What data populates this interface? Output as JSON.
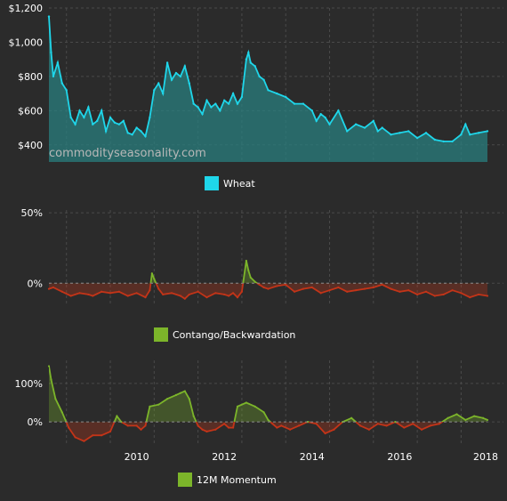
{
  "watermark": "commodityseasonality.com",
  "colors": {
    "background": "#2b2b2b",
    "grid": "#4a4a4a",
    "wheat": "#1fd6ea",
    "wheat_fill": "#2a7f7f",
    "green": "#7cb52a",
    "red": "#c33418",
    "text": "#ffffff"
  },
  "chart_data": [
    {
      "type": "area",
      "legend": "Wheat",
      "ylim": [
        300,
        1200
      ],
      "xlim": [
        2008.0,
        2018.0
      ],
      "ytick_labels": [
        "$400",
        "$600",
        "$800",
        "$1,000",
        "$1,200"
      ],
      "ytick_values": [
        400,
        600,
        800,
        1000,
        1200
      ],
      "series": [
        {
          "name": "Wheat",
          "x": [
            2008.0,
            2008.05,
            2008.1,
            2008.2,
            2008.3,
            2008.4,
            2008.5,
            2008.6,
            2008.7,
            2008.8,
            2008.9,
            2009.0,
            2009.1,
            2009.2,
            2009.3,
            2009.4,
            2009.5,
            2009.6,
            2009.7,
            2009.8,
            2009.9,
            2010.0,
            2010.1,
            2010.2,
            2010.3,
            2010.4,
            2010.5,
            2010.6,
            2010.7,
            2010.8,
            2010.9,
            2011.0,
            2011.1,
            2011.2,
            2011.3,
            2011.4,
            2011.5,
            2011.6,
            2011.7,
            2011.8,
            2011.9,
            2012.0,
            2012.1,
            2012.2,
            2012.3,
            2012.4,
            2012.5,
            2012.55,
            2012.6,
            2012.7,
            2012.8,
            2012.9,
            2013.0,
            2013.2,
            2013.4,
            2013.6,
            2013.8,
            2014.0,
            2014.1,
            2014.2,
            2014.3,
            2014.4,
            2014.6,
            2014.8,
            2015.0,
            2015.2,
            2015.4,
            2015.5,
            2015.6,
            2015.8,
            2016.0,
            2016.2,
            2016.4,
            2016.6,
            2016.8,
            2017.0,
            2017.2,
            2017.4,
            2017.5,
            2017.6,
            2017.8,
            2018.0
          ],
          "values": [
            1150,
            940,
            800,
            880,
            760,
            720,
            560,
            520,
            600,
            560,
            620,
            520,
            540,
            600,
            480,
            560,
            530,
            520,
            540,
            470,
            460,
            500,
            480,
            450,
            560,
            720,
            760,
            700,
            880,
            780,
            820,
            800,
            860,
            760,
            640,
            620,
            580,
            660,
            620,
            640,
            600,
            660,
            640,
            700,
            640,
            680,
            900,
            940,
            880,
            860,
            800,
            780,
            720,
            700,
            680,
            640,
            640,
            600,
            540,
            580,
            560,
            520,
            600,
            480,
            520,
            500,
            540,
            480,
            500,
            460,
            470,
            480,
            440,
            470,
            430,
            420,
            420,
            460,
            520,
            460,
            470,
            480
          ]
        }
      ]
    },
    {
      "type": "area",
      "legend": "Contango/Backwardation",
      "ylim": [
        -15,
        52
      ],
      "xlim": [
        2008.0,
        2018.0
      ],
      "ytick_labels": [
        "0%",
        "50%"
      ],
      "ytick_values": [
        0,
        50
      ],
      "series": [
        {
          "name": "Contango/Backwardation",
          "x": [
            2008.0,
            2008.1,
            2008.3,
            2008.5,
            2008.7,
            2008.9,
            2009.0,
            2009.2,
            2009.4,
            2009.6,
            2009.8,
            2010.0,
            2010.2,
            2010.3,
            2010.35,
            2010.4,
            2010.5,
            2010.6,
            2010.8,
            2011.0,
            2011.1,
            2011.2,
            2011.4,
            2011.6,
            2011.8,
            2012.0,
            2012.1,
            2012.2,
            2012.3,
            2012.4,
            2012.5,
            2012.55,
            2012.6,
            2012.7,
            2012.8,
            2012.9,
            2013.0,
            2013.2,
            2013.4,
            2013.6,
            2013.8,
            2014.0,
            2014.2,
            2014.4,
            2014.6,
            2014.8,
            2015.0,
            2015.2,
            2015.4,
            2015.6,
            2015.8,
            2016.0,
            2016.2,
            2016.4,
            2016.6,
            2016.8,
            2017.0,
            2017.2,
            2017.4,
            2017.6,
            2017.8,
            2018.0
          ],
          "values": [
            -4,
            -3,
            -6,
            -9,
            -7,
            -8,
            -9,
            -6,
            -7,
            -6,
            -9,
            -7,
            -10,
            -5,
            7,
            3,
            -4,
            -8,
            -7,
            -9,
            -11,
            -8,
            -6,
            -10,
            -7,
            -8,
            -9,
            -7,
            -10,
            -6,
            16,
            9,
            4,
            1,
            -1,
            -3,
            -4,
            -2,
            -1,
            -6,
            -4,
            -3,
            -7,
            -5,
            -3,
            -6,
            -5,
            -4,
            -3,
            -1,
            -4,
            -6,
            -5,
            -8,
            -6,
            -9,
            -8,
            -5,
            -7,
            -10,
            -8,
            -9
          ]
        }
      ]
    },
    {
      "type": "area",
      "legend": "12M Momentum",
      "ylim": [
        -60,
        160
      ],
      "xlim": [
        2008.0,
        2018.0
      ],
      "ytick_labels": [
        "0%",
        "100%"
      ],
      "ytick_values": [
        0,
        100
      ],
      "xtick_labels": [
        "2010",
        "2012",
        "2014",
        "2016",
        "2018"
      ],
      "xtick_values": [
        2010,
        2012,
        2014,
        2016,
        2018
      ],
      "series": [
        {
          "name": "12M Momentum",
          "x": [
            2008.0,
            2008.05,
            2008.15,
            2008.3,
            2008.45,
            2008.6,
            2008.8,
            2009.0,
            2009.2,
            2009.4,
            2009.55,
            2009.65,
            2009.8,
            2010.0,
            2010.1,
            2010.2,
            2010.3,
            2010.5,
            2010.7,
            2010.9,
            2011.0,
            2011.1,
            2011.2,
            2011.3,
            2011.4,
            2011.5,
            2011.6,
            2011.8,
            2012.0,
            2012.1,
            2012.2,
            2012.3,
            2012.5,
            2012.7,
            2012.9,
            2013.0,
            2013.1,
            2013.2,
            2013.3,
            2013.5,
            2013.7,
            2013.9,
            2014.1,
            2014.3,
            2014.5,
            2014.7,
            2014.9,
            2015.1,
            2015.3,
            2015.5,
            2015.7,
            2015.9,
            2016.1,
            2016.3,
            2016.5,
            2016.7,
            2016.9,
            2017.1,
            2017.3,
            2017.5,
            2017.7,
            2017.9,
            2018.0
          ],
          "values": [
            145,
            110,
            60,
            25,
            -15,
            -40,
            -50,
            -35,
            -35,
            -25,
            15,
            0,
            -10,
            -10,
            -20,
            -10,
            40,
            45,
            60,
            70,
            75,
            80,
            60,
            15,
            -10,
            -20,
            -25,
            -20,
            -5,
            -15,
            -15,
            40,
            50,
            40,
            25,
            5,
            -5,
            -15,
            -10,
            -20,
            -10,
            0,
            -5,
            -30,
            -20,
            0,
            10,
            -10,
            -20,
            -5,
            -10,
            0,
            -15,
            -5,
            -20,
            -10,
            -5,
            10,
            20,
            5,
            15,
            10,
            5
          ]
        }
      ]
    }
  ]
}
